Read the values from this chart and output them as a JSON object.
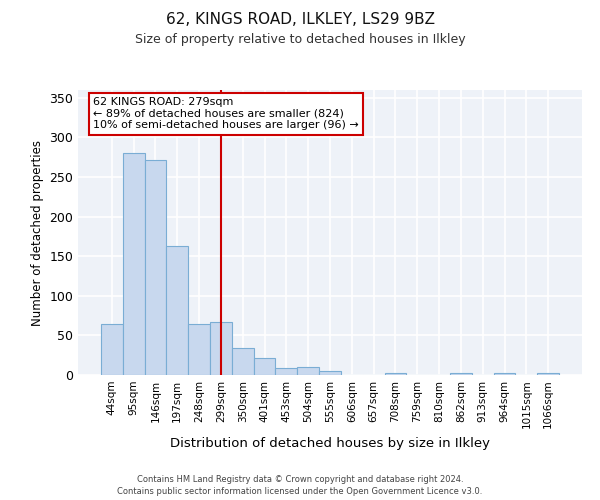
{
  "title1": "62, KINGS ROAD, ILKLEY, LS29 9BZ",
  "title2": "Size of property relative to detached houses in Ilkley",
  "xlabel": "Distribution of detached houses by size in Ilkley",
  "ylabel": "Number of detached properties",
  "footer1": "Contains HM Land Registry data © Crown copyright and database right 2024.",
  "footer2": "Contains public sector information licensed under the Open Government Licence v3.0.",
  "annotation_line1": "62 KINGS ROAD: 279sqm",
  "annotation_line2": "← 89% of detached houses are smaller (824)",
  "annotation_line3": "10% of semi-detached houses are larger (96) →",
  "vline_x": 5.0,
  "bar_color": "#c8d8ee",
  "bar_edge_color": "#7aadd4",
  "vline_color": "#cc0000",
  "categories": [
    "44sqm",
    "95sqm",
    "146sqm",
    "197sqm",
    "248sqm",
    "299sqm",
    "350sqm",
    "401sqm",
    "453sqm",
    "504sqm",
    "555sqm",
    "606sqm",
    "657sqm",
    "708sqm",
    "759sqm",
    "810sqm",
    "862sqm",
    "913sqm",
    "964sqm",
    "1015sqm",
    "1066sqm"
  ],
  "values": [
    65,
    281,
    272,
    163,
    65,
    67,
    34,
    21,
    9,
    10,
    5,
    0,
    0,
    2,
    0,
    0,
    2,
    0,
    2,
    0,
    2
  ],
  "ylim": [
    0,
    360
  ],
  "yticks": [
    0,
    50,
    100,
    150,
    200,
    250,
    300,
    350
  ],
  "background_color": "#eef2f8",
  "grid_color": "#ffffff"
}
